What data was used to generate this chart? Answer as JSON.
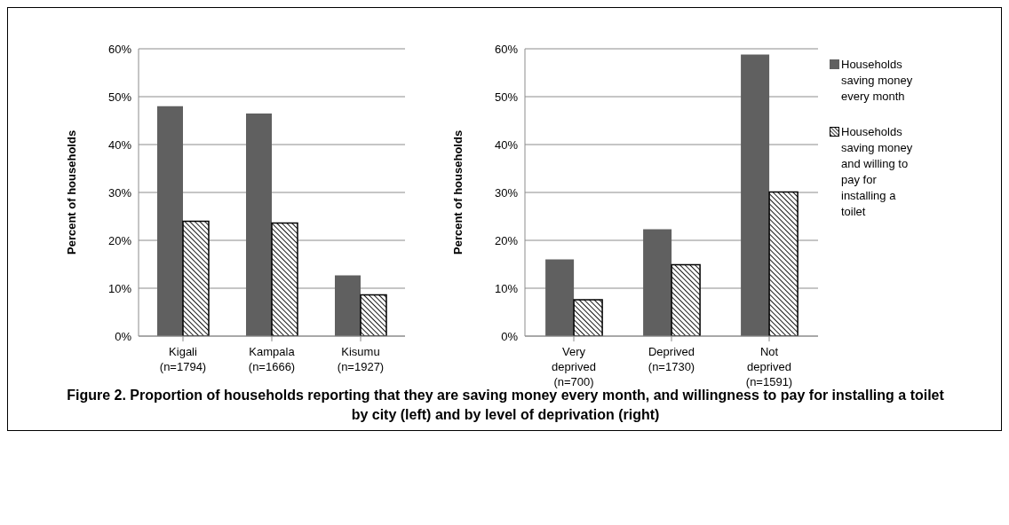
{
  "chart_data": [
    {
      "type": "bar",
      "categories": [
        "Kigali (n=1794)",
        "Kampala (n=1666)",
        "Kisumu (n=1927)"
      ],
      "ylabel": "Percent of households",
      "ylim": [
        0,
        60
      ],
      "yticks": [
        {
          "value": 0,
          "label": "0%"
        },
        {
          "value": 10,
          "label": "10%"
        },
        {
          "value": 20,
          "label": "20%"
        },
        {
          "value": 30,
          "label": "30%"
        },
        {
          "value": 40,
          "label": "40%"
        },
        {
          "value": 50,
          "label": "50%"
        },
        {
          "value": 60,
          "label": "60%"
        }
      ],
      "grid": "y",
      "series": [
        {
          "color": "#606060",
          "values": [
            48,
            46.5,
            12.7
          ]
        },
        {
          "color": "#000000",
          "values": [
            24,
            23.6,
            8.6
          ]
        }
      ]
    },
    {
      "type": "bar",
      "categories": [
        "Very deprived (n=700)",
        "Deprived (n=1730)",
        "Not deprived (n=1591)"
      ],
      "ylabel": "Percent of households",
      "ylim": [
        0,
        60
      ],
      "yticks": [
        {
          "value": 0,
          "label": "0%"
        },
        {
          "value": 10,
          "label": "10%"
        },
        {
          "value": 20,
          "label": "20%"
        },
        {
          "value": 30,
          "label": "30%"
        },
        {
          "value": 40,
          "label": "40%"
        },
        {
          "value": 50,
          "label": "50%"
        },
        {
          "value": 60,
          "label": "60%"
        }
      ],
      "grid": "y",
      "legend": "right",
      "series": [
        {
          "name": "Households saving money every month",
          "color": "#606060",
          "values": [
            16,
            22.3,
            58.8
          ]
        },
        {
          "name": "Households saving money and willing to pay for installing a toilet",
          "color": "#000000",
          "values": [
            7.6,
            14.9,
            30.1
          ]
        }
      ],
      "annotations": [
        "Figure 2. Proportion of households reporting that they are saving money every month, and willingness to pay for installing a toilet by city (left) and by level of deprivation (right)"
      ]
    }
  ]
}
